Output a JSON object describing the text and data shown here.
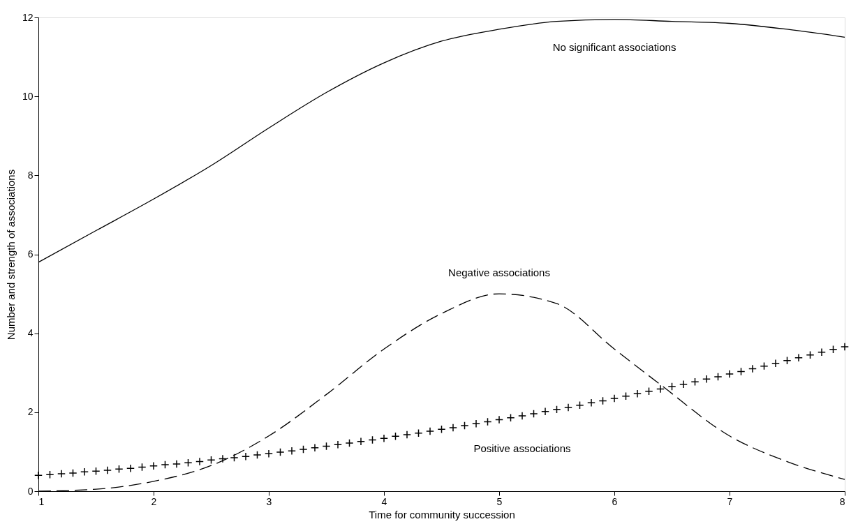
{
  "chart_data": {
    "type": "line",
    "xlabel": "Time for community succession",
    "ylabel": "Number and strength of associations",
    "xlim": [
      1,
      8
    ],
    "xticks": [
      1,
      2,
      3,
      4,
      5,
      6,
      7,
      8
    ],
    "ylim": [
      0,
      12
    ],
    "yticks": [
      0,
      2,
      4,
      6,
      8,
      10,
      12
    ],
    "grid": false,
    "legend": false,
    "series": [
      {
        "name": "No significant associations",
        "line_style": "solid",
        "color": "#000000",
        "x": [
          1,
          1.5,
          2,
          2.5,
          3,
          3.5,
          4,
          4.5,
          5,
          5.5,
          6,
          6.5,
          7,
          7.5,
          8
        ],
        "values": [
          5.8,
          6.6,
          7.4,
          8.25,
          9.2,
          10.1,
          10.85,
          11.4,
          11.7,
          11.9,
          11.95,
          11.9,
          11.85,
          11.7,
          11.5
        ]
      },
      {
        "name": "Negative associations",
        "line_style": "dashed",
        "color": "#000000",
        "x": [
          1,
          1.5,
          2,
          2.5,
          3,
          3.5,
          4,
          4.5,
          5,
          5.5,
          6,
          6.4,
          7,
          7.5,
          8
        ],
        "values": [
          0,
          0.05,
          0.25,
          0.65,
          1.4,
          2.45,
          3.6,
          4.5,
          5.0,
          4.75,
          3.6,
          2.7,
          1.4,
          0.75,
          0.3
        ]
      },
      {
        "name": "Positive associations",
        "type": "scatter",
        "marker": "cross",
        "color": "#000000",
        "x": [
          1.0,
          1.1,
          1.2,
          1.3,
          1.4,
          1.5,
          1.6,
          1.7,
          1.8,
          1.9,
          2.0,
          2.1,
          2.2,
          2.3,
          2.4,
          2.5,
          2.6,
          2.7,
          2.8,
          2.9,
          3.0,
          3.1,
          3.2,
          3.3,
          3.4,
          3.5,
          3.6,
          3.7,
          3.8,
          3.9,
          4.0,
          4.1,
          4.2,
          4.3,
          4.4,
          4.5,
          4.6,
          4.7,
          4.8,
          4.9,
          5.0,
          5.1,
          5.2,
          5.3,
          5.4,
          5.5,
          5.6,
          5.7,
          5.8,
          5.9,
          6.0,
          6.1,
          6.2,
          6.3,
          6.4,
          6.5,
          6.6,
          6.7,
          6.8,
          6.9,
          7.0,
          7.1,
          7.2,
          7.3,
          7.4,
          7.5,
          7.6,
          7.7,
          7.8,
          7.9,
          8.0
        ],
        "values": [
          0.4,
          0.42,
          0.44,
          0.46,
          0.49,
          0.51,
          0.53,
          0.56,
          0.58,
          0.61,
          0.64,
          0.67,
          0.69,
          0.72,
          0.75,
          0.79,
          0.82,
          0.85,
          0.88,
          0.92,
          0.95,
          0.99,
          1.02,
          1.06,
          1.1,
          1.14,
          1.18,
          1.22,
          1.26,
          1.3,
          1.34,
          1.39,
          1.43,
          1.47,
          1.52,
          1.57,
          1.61,
          1.66,
          1.71,
          1.76,
          1.81,
          1.86,
          1.91,
          1.96,
          2.02,
          2.07,
          2.12,
          2.18,
          2.24,
          2.29,
          2.35,
          2.41,
          2.47,
          2.53,
          2.59,
          2.65,
          2.71,
          2.77,
          2.84,
          2.9,
          2.97,
          3.03,
          3.1,
          3.17,
          3.24,
          3.31,
          3.38,
          3.45,
          3.52,
          3.59,
          3.66
        ]
      }
    ]
  }
}
